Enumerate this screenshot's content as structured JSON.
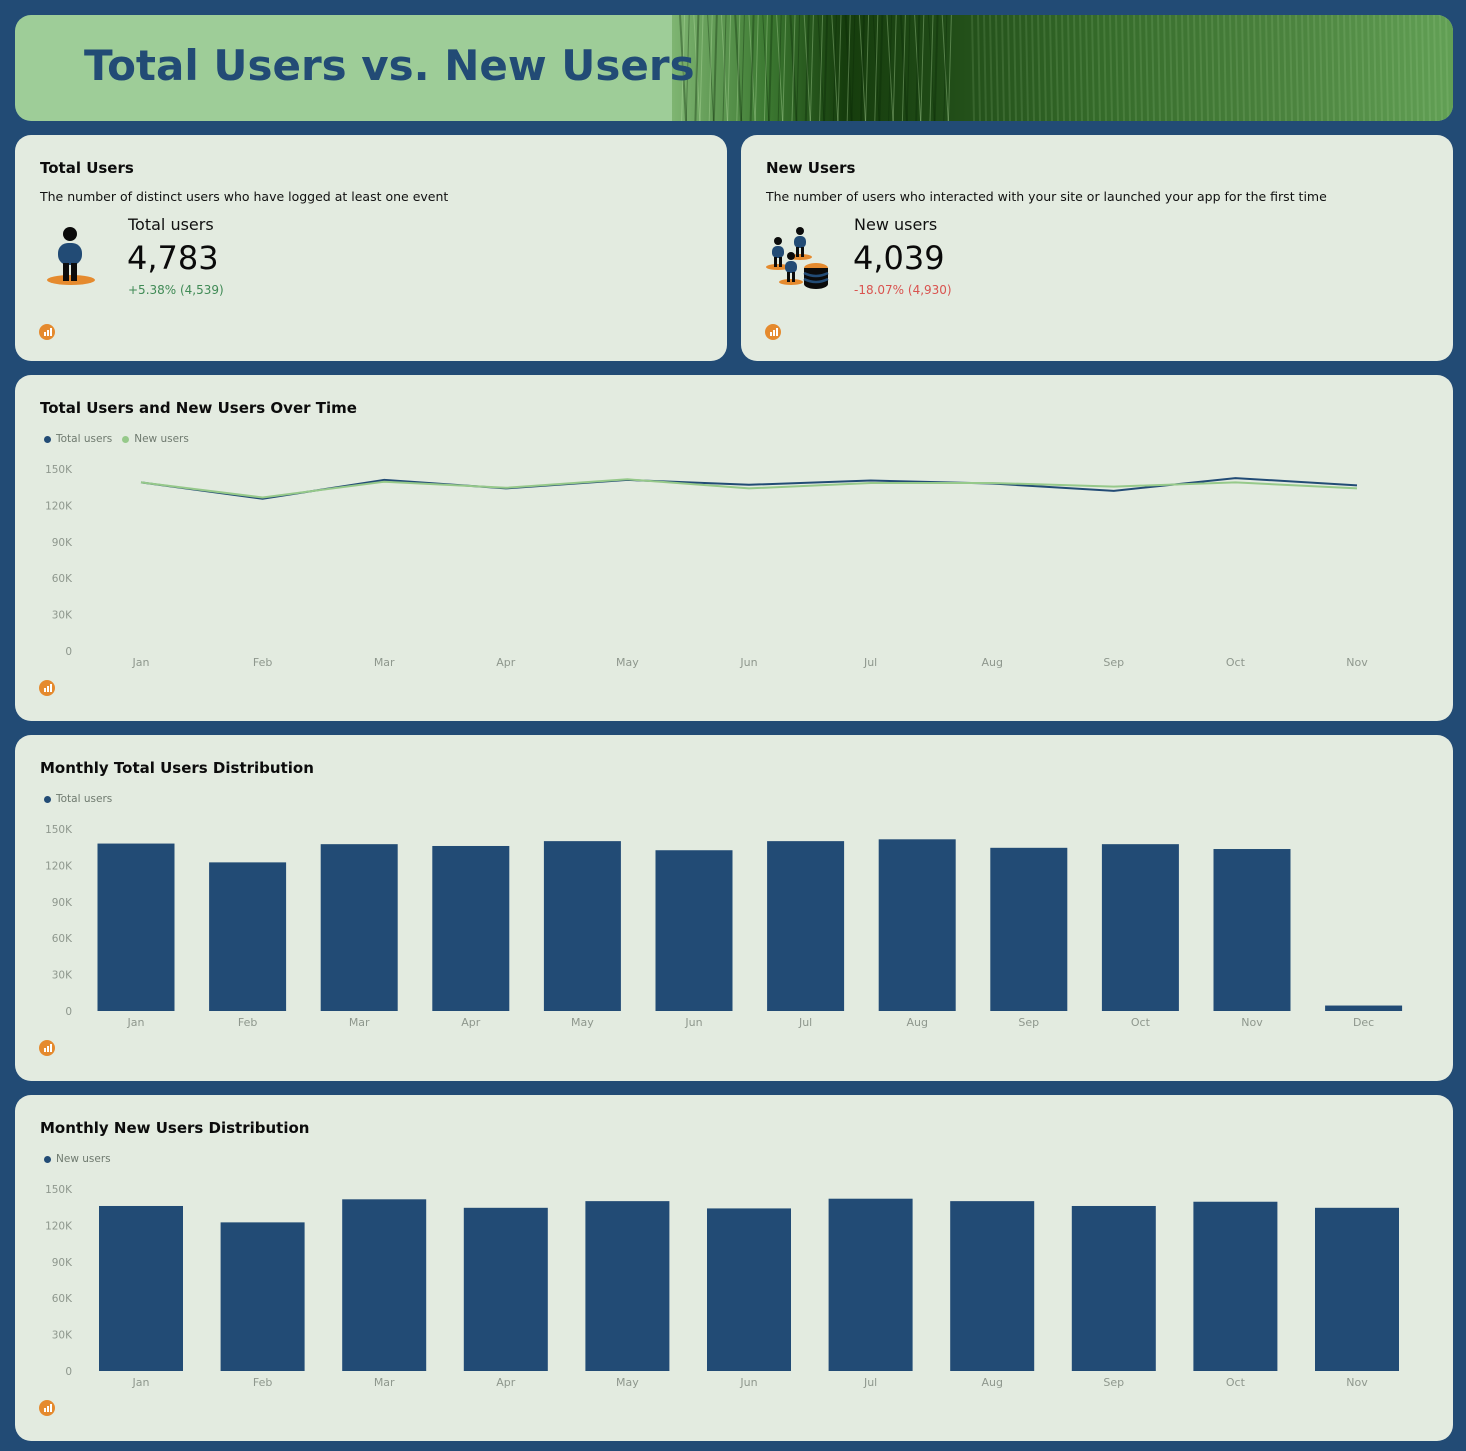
{
  "banner": {
    "title": "Total Users vs. New Users"
  },
  "colors": {
    "background": "#224b75",
    "card": "#e3ebe0",
    "primary": "#224b75",
    "secondary": "#96c98a",
    "accent": "#e58a2e",
    "positive": "#3f8a55",
    "negative": "#d9534f"
  },
  "kpi_total": {
    "title": "Total Users",
    "description": "The number of distinct users who have logged at least one event",
    "label": "Total users",
    "value": "4,783",
    "delta": "+5.38% (4,539)",
    "icon": "person-icon"
  },
  "kpi_new": {
    "title": "New Users",
    "description": "The number of users who interacted with your site or launched your app for the first time",
    "label": "New users",
    "value": "4,039",
    "delta": "-18.07% (4,930)",
    "icon": "users-database-icon"
  },
  "line_card": {
    "title": "Total Users and New Users Over Time",
    "legend": [
      "Total users",
      "New users"
    ]
  },
  "bar_total_card": {
    "title": "Monthly Total Users Distribution",
    "legend": [
      "Total users"
    ]
  },
  "bar_new_card": {
    "title": "Monthly New Users Distribution",
    "legend": [
      "New users"
    ]
  },
  "chart_data": [
    {
      "type": "line",
      "title": "Total Users and New Users Over Time",
      "categories": [
        "Jan",
        "Feb",
        "Mar",
        "Apr",
        "May",
        "Jun",
        "Jul",
        "Aug",
        "Sep",
        "Oct",
        "Nov"
      ],
      "series": [
        {
          "name": "Total users",
          "color": "#224b75",
          "values": [
            139000,
            125500,
            141000,
            134000,
            141000,
            137000,
            140500,
            138000,
            132000,
            142500,
            136500
          ]
        },
        {
          "name": "New users",
          "color": "#96c98a",
          "values": [
            139000,
            126500,
            139500,
            134500,
            141500,
            134000,
            138500,
            138500,
            135500,
            139000,
            134000
          ]
        }
      ],
      "y_ticks": [
        "0",
        "30K",
        "60K",
        "90K",
        "120K",
        "150K"
      ],
      "ylim": [
        0,
        150000
      ],
      "grid": false,
      "legend_position": "top-left"
    },
    {
      "type": "bar",
      "title": "Monthly Total Users Distribution",
      "categories": [
        "Jan",
        "Feb",
        "Mar",
        "Apr",
        "May",
        "Jun",
        "Jul",
        "Aug",
        "Sep",
        "Oct",
        "Nov",
        "Dec"
      ],
      "series": [
        {
          "name": "Total users",
          "color": "#224b75",
          "values": [
            138000,
            122500,
            137500,
            136000,
            140000,
            132500,
            140000,
            141500,
            134500,
            137500,
            133500,
            4500
          ]
        }
      ],
      "y_ticks": [
        "0",
        "30K",
        "60K",
        "90K",
        "120K",
        "150K"
      ],
      "ylim": [
        0,
        150000
      ],
      "grid": false,
      "legend_position": "top-left"
    },
    {
      "type": "bar",
      "title": "Monthly New Users Distribution",
      "categories": [
        "Jan",
        "Feb",
        "Mar",
        "Apr",
        "May",
        "Jun",
        "Jul",
        "Aug",
        "Sep",
        "Oct",
        "Nov"
      ],
      "series": [
        {
          "name": "New users",
          "color": "#224b75",
          "values": [
            136000,
            122500,
            141500,
            134500,
            140000,
            134000,
            142000,
            140000,
            136000,
            139500,
            134500
          ]
        }
      ],
      "y_ticks": [
        "0",
        "30K",
        "60K",
        "90K",
        "120K",
        "150K"
      ],
      "ylim": [
        0,
        150000
      ],
      "grid": false,
      "legend_position": "top-left"
    }
  ]
}
